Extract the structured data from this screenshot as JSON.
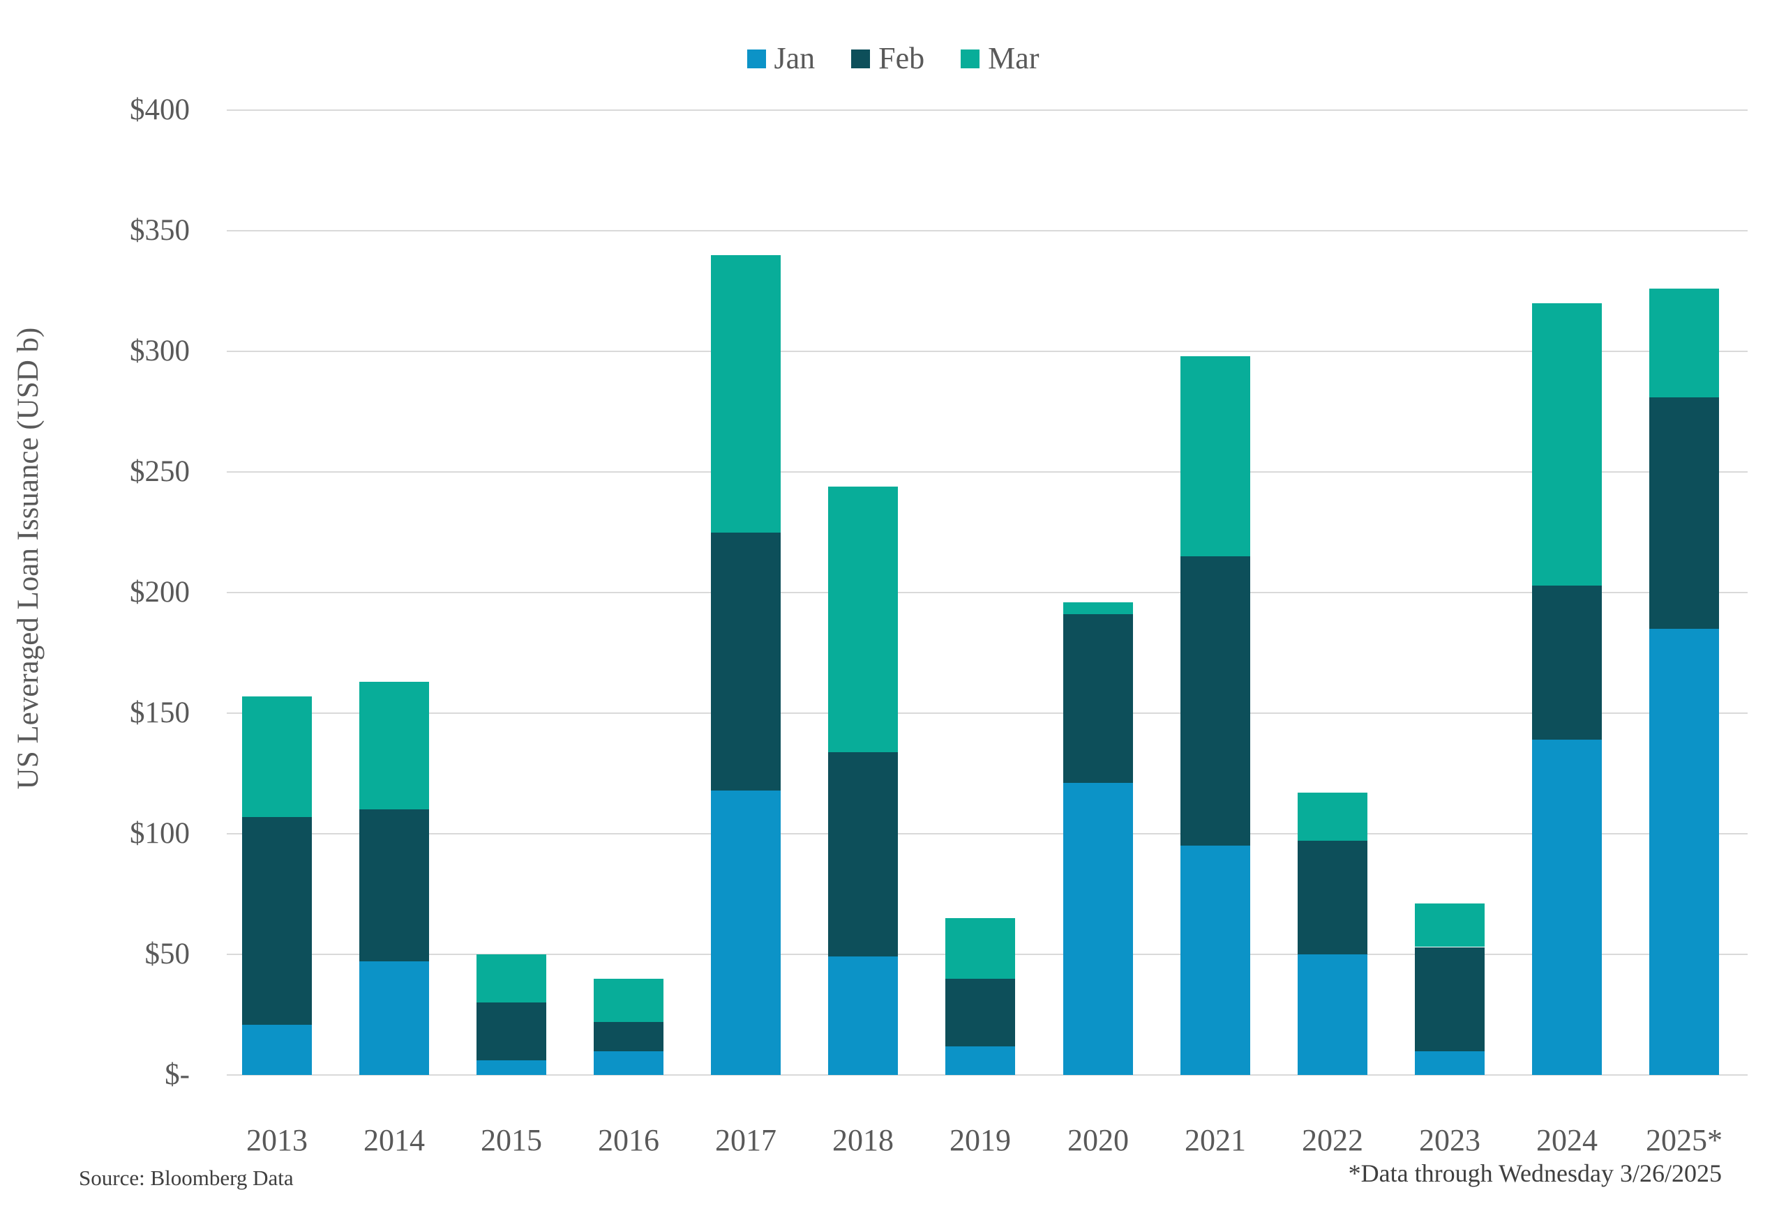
{
  "chart_data": {
    "type": "bar",
    "stacked": true,
    "title": "",
    "ylabel": "US Leveraged Loan Issuance (USD b)",
    "xlabel": "",
    "ylim": [
      0,
      400
    ],
    "grid": true,
    "grid_color": "#d9d9d9",
    "axis_text_color": "#595959",
    "legend_position": "top",
    "y_ticks": [
      {
        "value": 400,
        "label": "$400"
      },
      {
        "value": 350,
        "label": "$350"
      },
      {
        "value": 300,
        "label": "$300"
      },
      {
        "value": 250,
        "label": "$250"
      },
      {
        "value": 200,
        "label": "$200"
      },
      {
        "value": 150,
        "label": "$150"
      },
      {
        "value": 100,
        "label": "$100"
      },
      {
        "value": 50,
        "label": "$50"
      },
      {
        "value": 0,
        "label": "$-"
      }
    ],
    "categories": [
      "2013",
      "2014",
      "2015",
      "2016",
      "2017",
      "2018",
      "2019",
      "2020",
      "2021",
      "2022",
      "2023",
      "2024",
      "2025*"
    ],
    "series": [
      {
        "name": "Jan",
        "color": "#0c93c7",
        "values": [
          21,
          47,
          6,
          10,
          118,
          49,
          12,
          121,
          95,
          50,
          10,
          139,
          185
        ]
      },
      {
        "name": "Feb",
        "color": "#0d4f5a",
        "values": [
          86,
          63,
          24,
          12,
          107,
          85,
          28,
          70,
          120,
          47,
          43,
          64,
          96
        ]
      },
      {
        "name": "Mar",
        "color": "#08ad99",
        "values": [
          50,
          53,
          20,
          18,
          115,
          110,
          25,
          5,
          83,
          20,
          18,
          117,
          45
        ]
      }
    ]
  },
  "footer": {
    "source": "Source: Bloomberg Data",
    "note": "*Data through Wednesday 3/26/2025"
  }
}
